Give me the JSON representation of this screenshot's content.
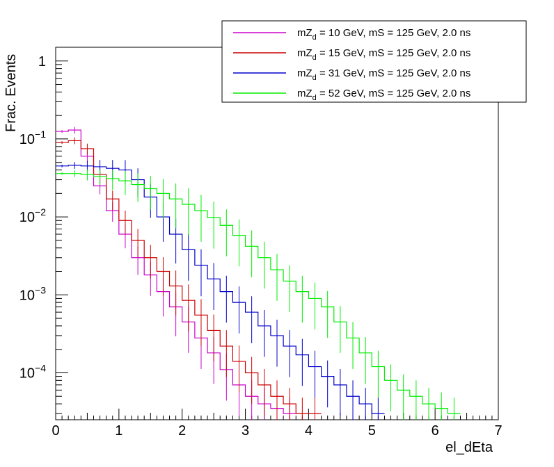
{
  "chart_data": {
    "type": "line",
    "title": "",
    "xlabel": "el_dEta",
    "ylabel": "Frac. Events",
    "xlim": [
      0,
      7
    ],
    "ylim": [
      2.5e-05,
      1.5
    ],
    "yscale": "log",
    "grid": false,
    "legend_position": "top-right",
    "x_ticks": [
      "0",
      "1",
      "2",
      "3",
      "4",
      "5",
      "6",
      "7"
    ],
    "y_ticks": [
      {
        "value": 1,
        "mantissa": "1",
        "exp": ""
      },
      {
        "value": 0.1,
        "mantissa": "10",
        "exp": "−1"
      },
      {
        "value": 0.01,
        "mantissa": "10",
        "exp": "−2"
      },
      {
        "value": 0.001,
        "mantissa": "10",
        "exp": "−3"
      },
      {
        "value": 0.0001,
        "mantissa": "10",
        "exp": "−4"
      }
    ],
    "x": [
      0.1,
      0.3,
      0.5,
      0.7,
      0.9,
      1.1,
      1.3,
      1.5,
      1.7,
      1.9,
      2.1,
      2.3,
      2.5,
      2.7,
      2.9,
      3.1,
      3.3,
      3.5,
      3.7,
      3.9,
      4.1,
      4.3,
      4.5,
      4.7,
      4.9,
      5.1,
      5.3,
      5.5,
      5.7,
      5.9,
      6.1,
      6.3
    ],
    "series": [
      {
        "legend_prefix": "mZ",
        "legend_sub": "d",
        "legend_rest": " = 10 GeV, mS = 125 GeV, 2.0 ns",
        "color": "#cc00cc",
        "values": [
          0.125,
          0.13,
          0.06,
          0.025,
          0.012,
          0.006,
          0.003,
          0.0018,
          0.0011,
          0.0007,
          0.00045,
          0.00028,
          0.00018,
          0.00011,
          7e-05,
          5e-05,
          4e-05,
          3.5e-05,
          3e-05,
          null,
          null,
          null,
          null,
          null,
          null,
          null,
          null,
          null,
          null,
          null,
          null,
          null
        ]
      },
      {
        "legend_prefix": "mZ",
        "legend_sub": "d",
        "legend_rest": " = 15 GeV, mS = 125 GeV, 2.0 ns",
        "color": "#cc0000",
        "values": [
          0.09,
          0.095,
          0.075,
          0.035,
          0.017,
          0.009,
          0.005,
          0.003,
          0.002,
          0.0013,
          0.00085,
          0.00055,
          0.00035,
          0.00022,
          0.00014,
          0.0001,
          7e-05,
          5e-05,
          4e-05,
          3e-05,
          3e-05,
          null,
          null,
          null,
          null,
          null,
          null,
          null,
          null,
          null,
          null,
          null
        ]
      },
      {
        "legend_prefix": "mZ",
        "legend_sub": "d",
        "legend_rest": " = 31 GeV, mS = 125 GeV, 2.0 ns",
        "color": "#0000cc",
        "values": [
          0.045,
          0.046,
          0.045,
          0.044,
          0.042,
          0.04,
          0.03,
          0.018,
          0.01,
          0.006,
          0.0038,
          0.0024,
          0.0016,
          0.0011,
          0.0008,
          0.0006,
          0.0004,
          0.0003,
          0.00022,
          0.00017,
          0.00012,
          9e-05,
          7e-05,
          5e-05,
          4e-05,
          3e-05,
          null,
          null,
          null,
          null,
          null,
          null
        ]
      },
      {
        "legend_prefix": "mZ",
        "legend_sub": "d",
        "legend_rest": " = 52 GeV, mS = 125 GeV, 2.0 ns",
        "color": "#00ee00",
        "values": [
          0.036,
          0.036,
          0.035,
          0.033,
          0.031,
          0.029,
          0.026,
          0.023,
          0.02,
          0.017,
          0.0145,
          0.012,
          0.0098,
          0.0078,
          0.0058,
          0.0042,
          0.003,
          0.0021,
          0.0015,
          0.0011,
          0.0009,
          0.0007,
          0.00045,
          0.00028,
          0.00018,
          0.00012,
          8e-05,
          6e-05,
          5e-05,
          4e-05,
          3.5e-05,
          3e-05
        ]
      }
    ]
  }
}
